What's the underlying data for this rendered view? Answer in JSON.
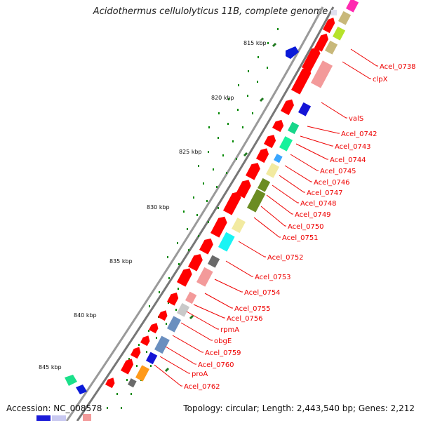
{
  "title": "Acidothermus cellulolyticus 11B, complete genome",
  "accession": "Accession: NC_008578",
  "topology": "Topology: circular; Length: 2,443,540 bp; Genes: 2,212",
  "ticks": [
    "815 kbp",
    "820 kbp",
    "825 kbp",
    "830 kbp",
    "835 kbp",
    "840 kbp",
    "845 kbp"
  ],
  "gene_labels": [
    "Acel_0738",
    "clpX",
    "valS",
    "Acel_0742",
    "Acel_0743",
    "Acel_0744",
    "Acel_0745",
    "Acel_0746",
    "Acel_0747",
    "Acel_0748",
    "Acel_0749",
    "Acel_0750",
    "Acel_0751",
    "Acel_0752",
    "Acel_0753",
    "Acel_0754",
    "Acel_0755",
    "Acel_0756",
    "rpmA",
    "obgE",
    "Acel_0759",
    "Acel_0760",
    "proA",
    "Acel_0762"
  ],
  "colors": {
    "forward_strand": "#ff0000",
    "backbone": "#888888",
    "tick_dots": "#008800",
    "label_text": "#ee0000"
  }
}
